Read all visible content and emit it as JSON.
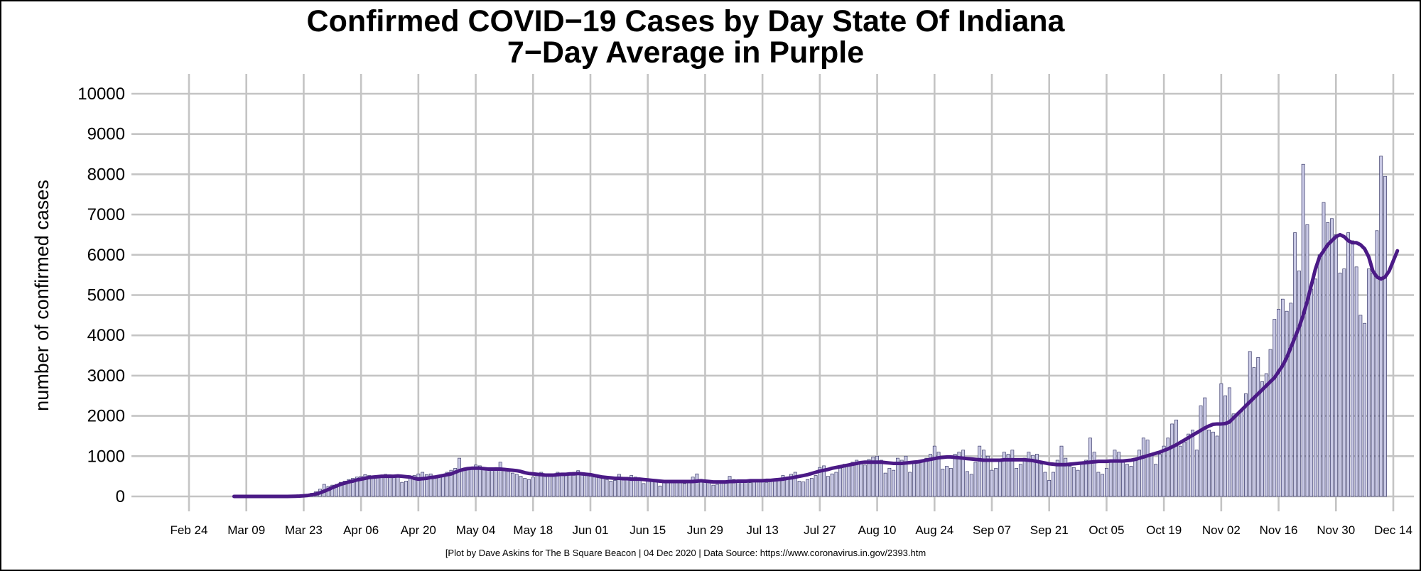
{
  "chart_data": {
    "type": "bar",
    "title": "Confirmed COVID−19 Cases by Day State Of Indiana",
    "subtitle": "7−Day Average in Purple",
    "xlabel": "",
    "ylabel": "number of confirmed cases",
    "caption": "[Plot by Dave Askins for The B Square Beacon | 04 Dec 2020 | Data Source: https://www.coronavirus.in.gov/2393.htm",
    "x_start": "2020-02-24",
    "x_end": "2020-12-14",
    "ylim": [
      0,
      10000
    ],
    "y_ticks": [
      0,
      1000,
      2000,
      3000,
      4000,
      5000,
      6000,
      7000,
      8000,
      9000,
      10000
    ],
    "x_tick_labels": [
      "Feb 24",
      "Mar 09",
      "Mar 23",
      "Apr 06",
      "Apr 20",
      "May 04",
      "May 18",
      "Jun 01",
      "Jun 15",
      "Jun 29",
      "Jul 13",
      "Jul 27",
      "Aug 10",
      "Aug 24",
      "Sep 07",
      "Sep 21",
      "Oct 05",
      "Oct 19",
      "Nov 02",
      "Nov 16",
      "Nov 30",
      "Dec 14"
    ],
    "grid": true,
    "colors": {
      "bars": "#c8c8e4",
      "bar_outline": "#3a3a6a",
      "average_line": "#4b1a86",
      "grid": "#c4c4c4"
    },
    "series": [
      {
        "name": "daily confirmed cases",
        "start_date": "2020-03-06",
        "values": [
          0,
          0,
          0,
          0,
          0,
          0,
          0,
          0,
          0,
          0,
          0,
          0,
          0,
          0,
          10,
          15,
          20,
          30,
          50,
          80,
          120,
          180,
          300,
          250,
          280,
          300,
          350,
          380,
          420,
          450,
          480,
          500,
          540,
          520,
          500,
          480,
          520,
          550,
          540,
          500,
          480,
          350,
          380,
          450,
          520,
          560,
          600,
          540,
          560,
          500,
          520,
          550,
          600,
          650,
          700,
          950,
          650,
          680,
          720,
          780,
          760,
          700,
          680,
          650,
          720,
          850,
          700,
          620,
          580,
          550,
          500,
          450,
          420,
          480,
          520,
          600,
          550,
          560,
          520,
          600,
          580,
          540,
          560,
          600,
          640,
          560,
          520,
          500,
          480,
          470,
          460,
          420,
          380,
          400,
          550,
          480,
          450,
          520,
          480,
          460,
          320,
          400,
          380,
          360,
          260,
          350,
          380,
          380,
          340,
          360,
          320,
          400,
          480,
          560,
          400,
          380,
          350,
          280,
          300,
          380,
          350,
          500,
          420,
          380,
          360,
          350,
          340,
          360,
          380,
          360,
          350,
          370,
          380,
          420,
          520,
          460,
          550,
          600,
          380,
          360,
          420,
          450,
          520,
          720,
          760,
          500,
          560,
          600,
          700,
          800,
          750,
          850,
          900,
          820,
          780,
          920,
          980,
          1000,
          900,
          580,
          700,
          650,
          950,
          900,
          1000,
          600,
          820,
          850,
          900,
          950,
          1050,
          1250,
          1100,
          680,
          750,
          700,
          1050,
          1100,
          1150,
          620,
          550,
          850,
          1250,
          1150,
          1000,
          650,
          700,
          900,
          1100,
          1050,
          1150,
          700,
          800,
          950,
          1100,
          1020,
          1050,
          800,
          600,
          400,
          600,
          900,
          1250,
          950,
          750,
          720,
          650,
          800,
          900,
          1450,
          1100,
          600,
          550,
          700,
          850,
          1150,
          1100,
          900,
          800,
          750,
          950,
          1150,
          1450,
          1400,
          1050,
          800,
          1050,
          1250,
          1450,
          1800,
          1900,
          1250,
          1350,
          1550,
          1650,
          1150,
          2250,
          2450,
          1650,
          1600,
          1500,
          2800,
          2500,
          2700,
          2050,
          2050,
          2150,
          2550,
          3600,
          3200,
          3450,
          2850,
          3050,
          3650,
          4400,
          4650,
          4900,
          4600,
          4800,
          6550,
          5600,
          8250,
          6750,
          5150,
          5400,
          6000,
          7300,
          6800,
          6900,
          6500,
          5550,
          5650,
          6550,
          6350,
          5700,
          4500,
          4300,
          5650,
          5550,
          6600,
          8450,
          7950
        ]
      },
      {
        "name": "7-day average",
        "start_date": "2020-03-06",
        "values": [
          0,
          0,
          0,
          0,
          0,
          0,
          0,
          0,
          0,
          0,
          0,
          0,
          0,
          0,
          2,
          5,
          8,
          15,
          25,
          40,
          60,
          90,
          130,
          170,
          220,
          260,
          300,
          330,
          360,
          380,
          410,
          430,
          450,
          470,
          480,
          490,
          500,
          500,
          500,
          500,
          510,
          500,
          490,
          480,
          450,
          430,
          440,
          450,
          470,
          480,
          500,
          520,
          540,
          560,
          600,
          640,
          670,
          690,
          700,
          700,
          700,
          690,
          680,
          680,
          680,
          680,
          670,
          660,
          650,
          640,
          620,
          590,
          570,
          560,
          550,
          540,
          530,
          530,
          530,
          540,
          550,
          550,
          560,
          560,
          570,
          560,
          550,
          540,
          520,
          500,
          480,
          470,
          460,
          450,
          450,
          440,
          440,
          430,
          430,
          430,
          420,
          410,
          400,
          390,
          380,
          370,
          370,
          370,
          370,
          370,
          370,
          370,
          370,
          380,
          390,
          380,
          370,
          360,
          360,
          360,
          360,
          370,
          370,
          380,
          380,
          380,
          390,
          390,
          390,
          390,
          400,
          400,
          410,
          420,
          430,
          450,
          460,
          480,
          500,
          520,
          540,
          570,
          600,
          630,
          650,
          670,
          700,
          720,
          740,
          760,
          780,
          800,
          820,
          840,
          850,
          850,
          850,
          850,
          850,
          840,
          830,
          820,
          820,
          820,
          830,
          840,
          850,
          860,
          880,
          900,
          920,
          940,
          960,
          970,
          980,
          980,
          970,
          960,
          950,
          940,
          930,
          920,
          910,
          900,
          900,
          900,
          900,
          900,
          910,
          910,
          910,
          910,
          910,
          910,
          900,
          890,
          870,
          850,
          830,
          810,
          800,
          790,
          790,
          790,
          800,
          810,
          820,
          830,
          840,
          850,
          860,
          870,
          870,
          870,
          880,
          880,
          880,
          880,
          890,
          900,
          920,
          950,
          980,
          1010,
          1040,
          1070,
          1100,
          1140,
          1180,
          1230,
          1280,
          1340,
          1400,
          1460,
          1520,
          1580,
          1640,
          1700,
          1750,
          1790,
          1800,
          1800,
          1810,
          1850,
          1950,
          2050,
          2150,
          2250,
          2350,
          2450,
          2550,
          2650,
          2750,
          2850,
          2950,
          3100,
          3250,
          3450,
          3700,
          3950,
          4200,
          4500,
          4850,
          5250,
          5650,
          5950,
          6100,
          6250,
          6350,
          6450,
          6500,
          6450,
          6350,
          6300,
          6300,
          6250,
          6150,
          5950,
          5600,
          5450,
          5400,
          5450,
          5600,
          5850,
          6100
        ]
      }
    ]
  }
}
